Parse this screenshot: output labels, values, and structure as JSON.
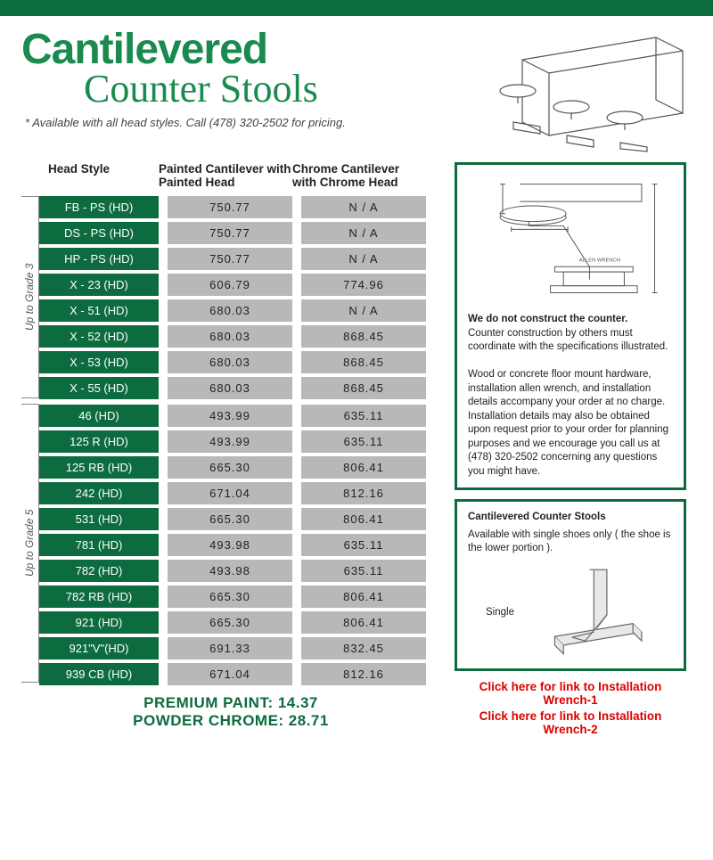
{
  "header": {
    "title1": "Cantilevered",
    "title2": "Counter Stools",
    "subtitle": "* Available with all head styles. Call (478) 320-2502 for pricing."
  },
  "table": {
    "columns": [
      "Head Style",
      "Painted Cantilever with Painted Head",
      "Chrome Cantilever with Chrome Head"
    ],
    "groups": [
      {
        "label": "Up to Grade 3",
        "rows": [
          {
            "head": "FB - PS (HD)",
            "painted": "750.77",
            "chrome": "N / A"
          },
          {
            "head": "DS - PS (HD)",
            "painted": "750.77",
            "chrome": "N / A"
          },
          {
            "head": "HP - PS (HD)",
            "painted": "750.77",
            "chrome": "N / A"
          },
          {
            "head": "X - 23 (HD)",
            "painted": "606.79",
            "chrome": "774.96"
          },
          {
            "head": "X - 51 (HD)",
            "painted": "680.03",
            "chrome": "N / A"
          },
          {
            "head": "X - 52 (HD)",
            "painted": "680.03",
            "chrome": "868.45"
          },
          {
            "head": "X - 53 (HD)",
            "painted": "680.03",
            "chrome": "868.45"
          },
          {
            "head": "X - 55 (HD)",
            "painted": "680.03",
            "chrome": "868.45"
          }
        ]
      },
      {
        "label": "Up to Grade 5",
        "rows": [
          {
            "head": "46 (HD)",
            "painted": "493.99",
            "chrome": "635.11"
          },
          {
            "head": "125 R (HD)",
            "painted": "493.99",
            "chrome": "635.11"
          },
          {
            "head": "125 RB (HD)",
            "painted": "665.30",
            "chrome": "806.41"
          },
          {
            "head": "242 (HD)",
            "painted": "671.04",
            "chrome": "812.16"
          },
          {
            "head": "531 (HD)",
            "painted": "665.30",
            "chrome": "806.41"
          },
          {
            "head": "781 (HD)",
            "painted": "493.98",
            "chrome": "635.11"
          },
          {
            "head": "782 (HD)",
            "painted": "493.98",
            "chrome": "635.11"
          },
          {
            "head": "782 RB (HD)",
            "painted": "665.30",
            "chrome": "806.41"
          },
          {
            "head": "921 (HD)",
            "painted": "665.30",
            "chrome": "806.41"
          },
          {
            "head": "921\"V\"(HD)",
            "painted": "691.33",
            "chrome": "832.45"
          },
          {
            "head": "939 CB (HD)",
            "painted": "671.04",
            "chrome": "812.16"
          }
        ]
      }
    ]
  },
  "footer": {
    "premium": "PREMIUM PAINT: 14.37",
    "powder": "POWDER CHROME: 28.71"
  },
  "info": {
    "headline": "We do not construct the counter.",
    "line1": "Counter construction by others must coordinate with the specifications illustrated.",
    "line2": "Wood or concrete floor mount hardware, installation allen wrench, and installation details accompany your order at no charge. Installation details may also be obtained upon request prior to your order for planning purposes and we encourage you call us at (478) 320-2502 concerning any questions you might have."
  },
  "shoe": {
    "title": "Cantilevered Counter Stools",
    "desc": "Available with single shoes only ( the shoe is the lower portion ).",
    "label": "Single"
  },
  "links": {
    "l1": "Click here for link to Installation Wrench-1",
    "l2": "Click here for link to Installation Wrench-2"
  },
  "colors": {
    "brand_green": "#0c6b3f",
    "light_green": "#1a8a4f",
    "cell_gray": "#b8b8b8",
    "link_red": "#d00"
  }
}
